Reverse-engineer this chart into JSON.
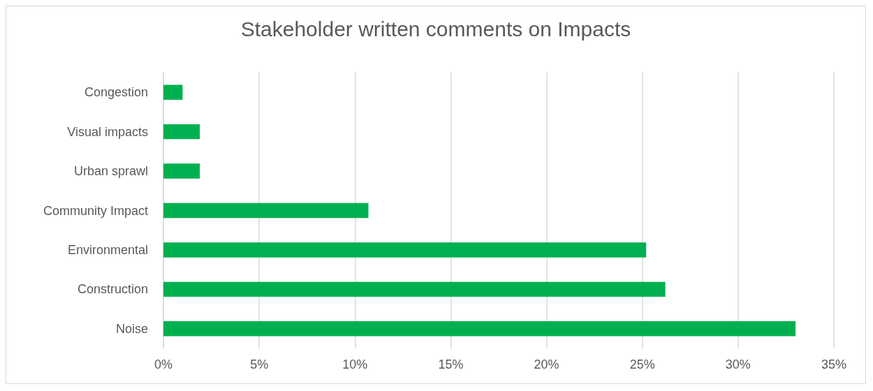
{
  "chart_data": {
    "type": "bar",
    "orientation": "horizontal",
    "title": "Stakeholder written comments on Impacts",
    "categories": [
      "Congestion",
      "Visual impacts",
      "Urban sprawl",
      "Community Impact",
      "Environmental",
      "Construction",
      "Noise"
    ],
    "values": [
      1.0,
      1.9,
      1.9,
      10.7,
      25.2,
      26.2,
      33.0
    ],
    "color": "#00b050",
    "xlim": [
      0,
      35
    ],
    "xticks": [
      {
        "value": 0,
        "label": "0%"
      },
      {
        "value": 5,
        "label": "5%"
      },
      {
        "value": 10,
        "label": "10%"
      },
      {
        "value": 15,
        "label": "15%"
      },
      {
        "value": 20,
        "label": "20%"
      },
      {
        "value": 25,
        "label": "25%"
      },
      {
        "value": 30,
        "label": "30%"
      },
      {
        "value": 35,
        "label": "35%"
      }
    ],
    "grid": "x"
  }
}
